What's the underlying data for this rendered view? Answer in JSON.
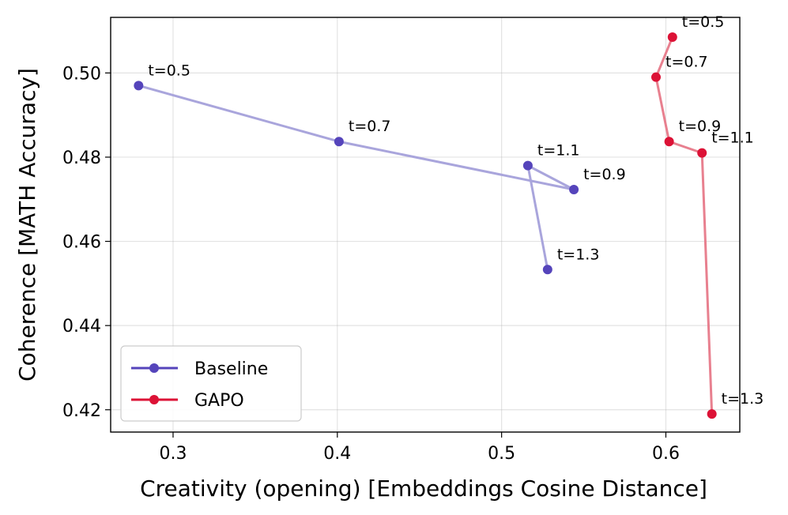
{
  "chart_data": {
    "type": "line",
    "title": "",
    "xlabel": "Creativity (opening) [Embeddings Cosine Distance]",
    "ylabel": "Coherence [MATH Accuracy]",
    "xlim": [
      0.262,
      0.645
    ],
    "ylim": [
      0.4147,
      0.5132
    ],
    "xticks": [
      0.3,
      0.4,
      0.5,
      0.6
    ],
    "xtick_labels": [
      "0.3",
      "0.4",
      "0.5",
      "0.6"
    ],
    "yticks": [
      0.42,
      0.44,
      0.46,
      0.48,
      0.5
    ],
    "ytick_labels": [
      "0.42",
      "0.44",
      "0.46",
      "0.48",
      "0.50"
    ],
    "grid": true,
    "legend_position": "lower-left",
    "series": [
      {
        "name": "Baseline",
        "color": "#5544bb",
        "line_color": "#a9a5dc",
        "points": [
          {
            "label": "t=0.5",
            "x": 0.279,
            "y": 0.497
          },
          {
            "label": "t=0.7",
            "x": 0.401,
            "y": 0.4837
          },
          {
            "label": "t=0.9",
            "x": 0.544,
            "y": 0.4723
          },
          {
            "label": "t=1.1",
            "x": 0.516,
            "y": 0.478
          },
          {
            "label": "t=1.3",
            "x": 0.528,
            "y": 0.4533
          }
        ]
      },
      {
        "name": "GAPO",
        "color": "#dc1236",
        "line_color": "#e8808f",
        "points": [
          {
            "label": "t=0.5",
            "x": 0.604,
            "y": 0.5085
          },
          {
            "label": "t=0.7",
            "x": 0.594,
            "y": 0.499
          },
          {
            "label": "t=0.9",
            "x": 0.602,
            "y": 0.4837
          },
          {
            "label": "t=1.1",
            "x": 0.622,
            "y": 0.481
          },
          {
            "label": "t=1.3",
            "x": 0.628,
            "y": 0.419
          }
        ]
      }
    ]
  }
}
